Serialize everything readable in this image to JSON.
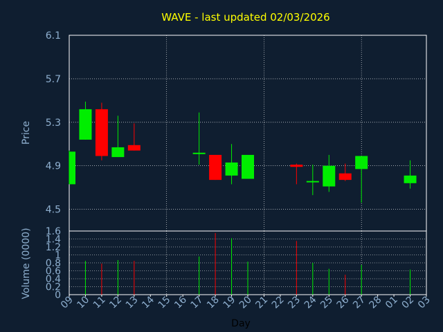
{
  "chart_data": {
    "type": "candlestick",
    "title": "WAVE - last updated 02/03/2026",
    "xlabel": "Day",
    "colors": {
      "background": "#0f1e30",
      "up": "#00ee00",
      "down": "#ff0000",
      "axes": "#ffffff",
      "grid": "#ffffff",
      "ticks": "#8fb0d0",
      "title": "#ffff00"
    },
    "x_tick_labels": [
      "09",
      "10",
      "11",
      "12",
      "13",
      "14",
      "15",
      "16",
      "17",
      "18",
      "19",
      "20",
      "21",
      "22",
      "23",
      "24",
      "25",
      "26",
      "27",
      "28",
      "01",
      "02",
      "03"
    ],
    "price_panel": {
      "ylabel": "Price",
      "ylim": [
        4.3,
        6.1
      ],
      "yticks": [
        "4.5",
        "4.9",
        "5.3",
        "5.7",
        "6.1"
      ],
      "grid": true,
      "candles": [
        {
          "day": "09",
          "open": 4.73,
          "high": 5.04,
          "low": 4.73,
          "close": 5.03
        },
        {
          "day": "10",
          "open": 5.14,
          "high": 5.49,
          "low": 5.14,
          "close": 5.42
        },
        {
          "day": "11",
          "open": 5.42,
          "high": 5.48,
          "low": 4.95,
          "close": 4.99
        },
        {
          "day": "12",
          "open": 4.98,
          "high": 5.36,
          "low": 4.98,
          "close": 5.07
        },
        {
          "day": "13",
          "open": 5.09,
          "high": 5.29,
          "low": 5.04,
          "close": 5.04
        },
        {
          "day": "17",
          "open": 5.01,
          "high": 5.39,
          "low": 4.91,
          "close": 5.02
        },
        {
          "day": "18",
          "open": 5.0,
          "high": 5.0,
          "low": 4.77,
          "close": 4.77
        },
        {
          "day": "19",
          "open": 4.81,
          "high": 5.1,
          "low": 4.73,
          "close": 4.93
        },
        {
          "day": "20",
          "open": 4.78,
          "high": 5.0,
          "low": 4.78,
          "close": 5.0
        },
        {
          "day": "23",
          "open": 4.91,
          "high": 4.92,
          "low": 4.73,
          "close": 4.89
        },
        {
          "day": "24",
          "open": 4.76,
          "high": 4.91,
          "low": 4.63,
          "close": 4.76
        },
        {
          "day": "25",
          "open": 4.71,
          "high": 5.0,
          "low": 4.66,
          "close": 4.9
        },
        {
          "day": "26",
          "open": 4.83,
          "high": 4.92,
          "low": 4.76,
          "close": 4.77
        },
        {
          "day": "27",
          "open": 4.87,
          "high": 4.99,
          "low": 4.56,
          "close": 4.99
        },
        {
          "day": "02",
          "open": 4.74,
          "high": 4.95,
          "low": 4.69,
          "close": 4.81
        }
      ]
    },
    "volume_panel": {
      "ylabel": "Volume (0000)",
      "ylim": [
        0,
        1.6
      ],
      "yticks": [
        "0",
        "0.2",
        "0.4",
        "0.6",
        "0.8",
        "1",
        "1.2",
        "1.4",
        "1.6"
      ],
      "grid": true,
      "bars": [
        {
          "day": "10",
          "value": 0.85,
          "direction": "up"
        },
        {
          "day": "11",
          "value": 0.78,
          "direction": "down"
        },
        {
          "day": "12",
          "value": 0.87,
          "direction": "up"
        },
        {
          "day": "13",
          "value": 0.85,
          "direction": "down"
        },
        {
          "day": "17",
          "value": 0.96,
          "direction": "up"
        },
        {
          "day": "18",
          "value": 1.55,
          "direction": "down"
        },
        {
          "day": "19",
          "value": 1.42,
          "direction": "up"
        },
        {
          "day": "20",
          "value": 0.83,
          "direction": "up"
        },
        {
          "day": "23",
          "value": 1.35,
          "direction": "down"
        },
        {
          "day": "24",
          "value": 0.8,
          "direction": "up"
        },
        {
          "day": "25",
          "value": 0.65,
          "direction": "up"
        },
        {
          "day": "26",
          "value": 0.5,
          "direction": "down"
        },
        {
          "day": "27",
          "value": 0.75,
          "direction": "up"
        },
        {
          "day": "02",
          "value": 0.63,
          "direction": "up"
        }
      ]
    }
  }
}
